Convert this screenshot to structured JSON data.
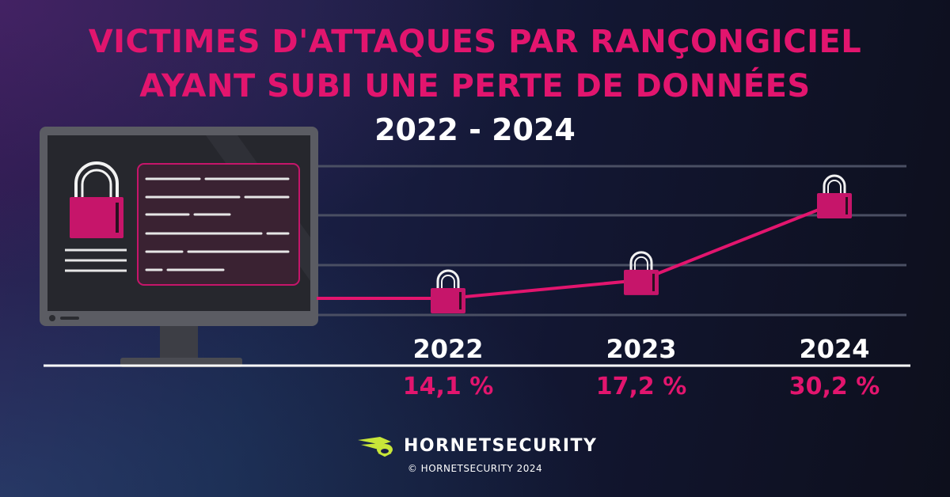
{
  "title_line1": "VICTIMES D'ATTAQUES PAR RANÇONGICIEL",
  "title_line2": "AYANT SUBI UNE PERTE DE DONNÉES",
  "year_range": "2022 - 2024",
  "chart_data": {
    "type": "line",
    "categories": [
      "2022",
      "2023",
      "2024"
    ],
    "values": [
      14.1,
      17.2,
      30.2
    ],
    "value_labels": [
      "14,1 %",
      "17,2 %",
      "30,2 %"
    ],
    "unit": "%",
    "title": "VICTIMES D'ATTAQUES PAR RANÇONGICIEL AYANT SUBI UNE PERTE DE DONNÉES",
    "grid": true,
    "marker": "padlock-icon"
  },
  "brand": {
    "name": "HORNETSECURITY",
    "copyright": "© HORNETSECURITY 2024"
  },
  "colors": {
    "accent": "#e2156e",
    "text": "#ffffff",
    "logo": "#c8e639"
  }
}
